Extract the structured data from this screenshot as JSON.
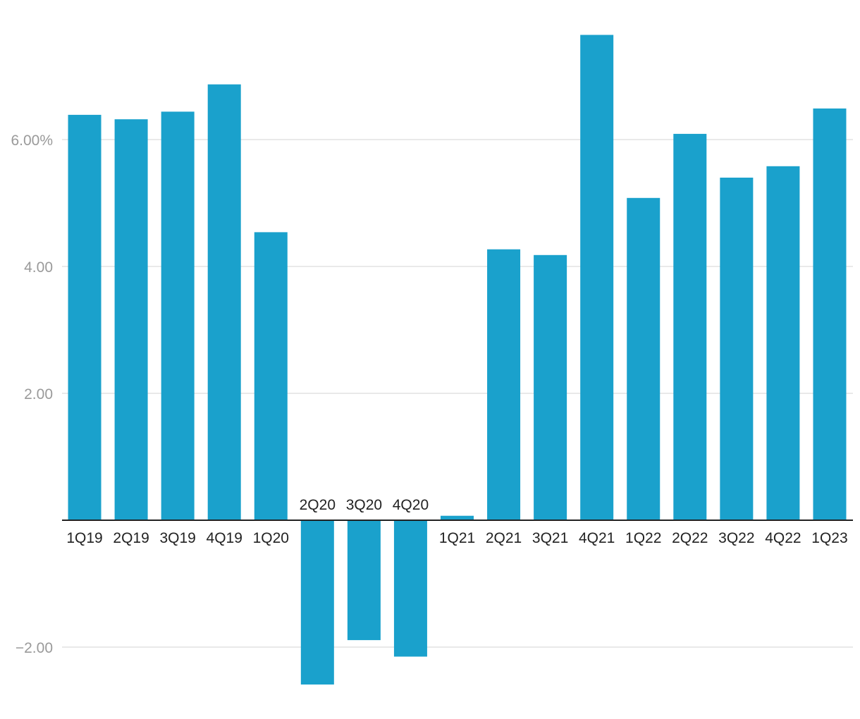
{
  "chart_data": {
    "type": "bar",
    "title": "",
    "xlabel": "",
    "ylabel": "",
    "categories": [
      "1Q19",
      "2Q19",
      "3Q19",
      "4Q19",
      "1Q20",
      "2Q20",
      "3Q20",
      "4Q20",
      "1Q21",
      "2Q21",
      "3Q21",
      "4Q21",
      "1Q22",
      "2Q22",
      "3Q22",
      "4Q22",
      "1Q23"
    ],
    "values": [
      6.39,
      6.32,
      6.44,
      6.87,
      4.54,
      -2.59,
      -1.89,
      -2.15,
      0.07,
      4.27,
      4.18,
      7.65,
      5.08,
      6.09,
      5.4,
      5.58,
      6.49
    ],
    "y_ticks": [
      {
        "value": 6,
        "label": "6.00%"
      },
      {
        "value": 4,
        "label": "4.00"
      },
      {
        "value": 2,
        "label": "2.00"
      },
      {
        "value": -2,
        "label": "−2.00"
      }
    ],
    "ylim": [
      -2.8,
      8.0
    ],
    "grid": true,
    "legend": "none",
    "colors": {
      "bar": "#1aa1cc",
      "grid": "#e2e2e2",
      "zero_line": "#222222",
      "y_tick_text": "#9a9a9a",
      "x_tick_text": "#222222"
    }
  }
}
